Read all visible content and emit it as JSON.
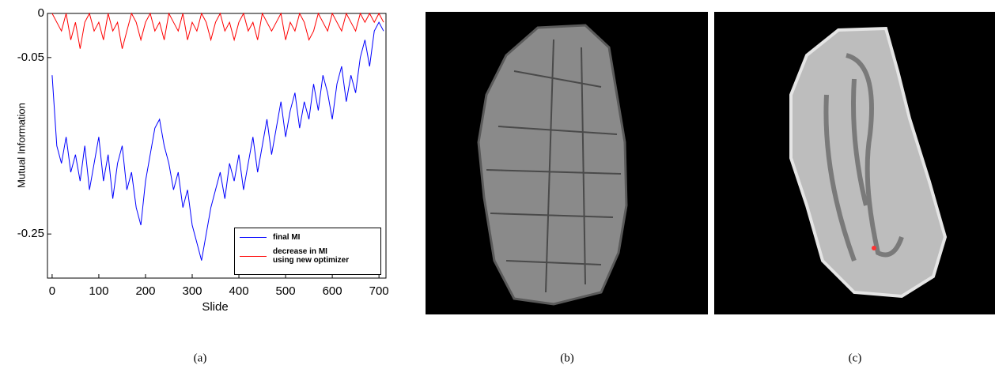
{
  "chart_data": {
    "type": "line",
    "x_label": "Slide",
    "y_label": "Mutual Information",
    "xlim": [
      -10,
      715
    ],
    "ylim": [
      -0.3,
      0
    ],
    "xticks": [
      0,
      100,
      200,
      300,
      400,
      500,
      600,
      700
    ],
    "yticks": [
      0,
      -0.05,
      -0.25
    ],
    "legend": "lower right",
    "x": [
      0,
      10,
      20,
      30,
      40,
      50,
      60,
      70,
      80,
      90,
      100,
      110,
      120,
      130,
      140,
      150,
      160,
      170,
      180,
      190,
      200,
      210,
      220,
      230,
      240,
      250,
      260,
      270,
      280,
      290,
      300,
      310,
      320,
      330,
      340,
      350,
      360,
      370,
      380,
      390,
      400,
      410,
      420,
      430,
      440,
      450,
      460,
      470,
      480,
      490,
      500,
      510,
      520,
      530,
      540,
      550,
      560,
      570,
      580,
      590,
      600,
      610,
      620,
      630,
      640,
      650,
      660,
      670,
      680,
      690,
      700,
      710
    ],
    "series": [
      {
        "name": "final MI",
        "color": "#0000ff",
        "values": [
          -0.07,
          -0.15,
          -0.17,
          -0.14,
          -0.18,
          -0.16,
          -0.19,
          -0.15,
          -0.2,
          -0.17,
          -0.14,
          -0.19,
          -0.16,
          -0.21,
          -0.17,
          -0.15,
          -0.2,
          -0.18,
          -0.22,
          -0.24,
          -0.19,
          -0.16,
          -0.13,
          -0.12,
          -0.15,
          -0.17,
          -0.2,
          -0.18,
          -0.22,
          -0.2,
          -0.24,
          -0.26,
          -0.28,
          -0.25,
          -0.22,
          -0.2,
          -0.18,
          -0.21,
          -0.17,
          -0.19,
          -0.16,
          -0.2,
          -0.17,
          -0.14,
          -0.18,
          -0.15,
          -0.12,
          -0.16,
          -0.13,
          -0.1,
          -0.14,
          -0.11,
          -0.09,
          -0.13,
          -0.1,
          -0.12,
          -0.08,
          -0.11,
          -0.07,
          -0.09,
          -0.12,
          -0.08,
          -0.06,
          -0.1,
          -0.07,
          -0.09,
          -0.05,
          -0.03,
          -0.06,
          -0.02,
          -0.01,
          -0.02
        ]
      },
      {
        "name": "decrease in MI\nusing new optimizer",
        "color": "#ff0000",
        "values": [
          0,
          -0.01,
          -0.02,
          0,
          -0.03,
          -0.01,
          -0.04,
          -0.01,
          0,
          -0.02,
          -0.01,
          -0.03,
          0,
          -0.02,
          -0.01,
          -0.04,
          -0.02,
          0,
          -0.01,
          -0.03,
          -0.01,
          0,
          -0.02,
          -0.01,
          -0.03,
          0,
          -0.01,
          -0.02,
          0,
          -0.03,
          -0.01,
          -0.02,
          0,
          -0.01,
          -0.03,
          -0.01,
          0,
          -0.02,
          -0.01,
          -0.03,
          -0.01,
          0,
          -0.02,
          -0.01,
          -0.03,
          0,
          -0.01,
          -0.02,
          -0.01,
          0,
          -0.03,
          -0.01,
          -0.02,
          0,
          -0.01,
          -0.03,
          -0.02,
          0,
          -0.01,
          -0.02,
          0,
          -0.01,
          -0.02,
          0,
          -0.01,
          -0.02,
          0,
          -0.01,
          0,
          -0.01,
          0,
          -0.01
        ]
      }
    ]
  },
  "captions": [
    "(a)",
    "(b)",
    "(c)"
  ]
}
